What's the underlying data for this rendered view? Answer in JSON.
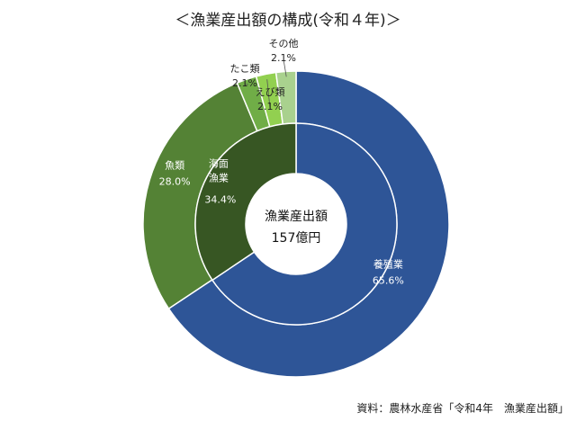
{
  "chart_data": {
    "type": "pie",
    "subtype": "double-donut",
    "title": "＜漁業産出額の構成(令和４年)＞",
    "center_label": {
      "line1": "漁業産出額",
      "line2": "157億円"
    },
    "inner_ring": [
      {
        "name": "養殖業",
        "value": 65.6,
        "label_value": "65.6%",
        "color": "#2E5597"
      },
      {
        "name": "海面漁業",
        "value": 34.4,
        "label_value": "34.4%",
        "color": "#375623"
      }
    ],
    "outer_ring": [
      {
        "name": "養殖業",
        "value": 65.6,
        "color": "#2E5597"
      },
      {
        "name": "魚類",
        "value": 28.0,
        "label_value": "28.0%",
        "color": "#548235"
      },
      {
        "name": "たこ類",
        "value": 2.1,
        "label_value": "2.1%",
        "color": "#70AD47"
      },
      {
        "name": "えび類",
        "value": 2.1,
        "label_value": "2.1%",
        "color": "#92D050"
      },
      {
        "name": "その他",
        "value": 2.1,
        "label_value": "2.1%",
        "color": "#A9D18E"
      }
    ],
    "source": "資料：農林水産省「令和4年　漁業産出額」"
  }
}
